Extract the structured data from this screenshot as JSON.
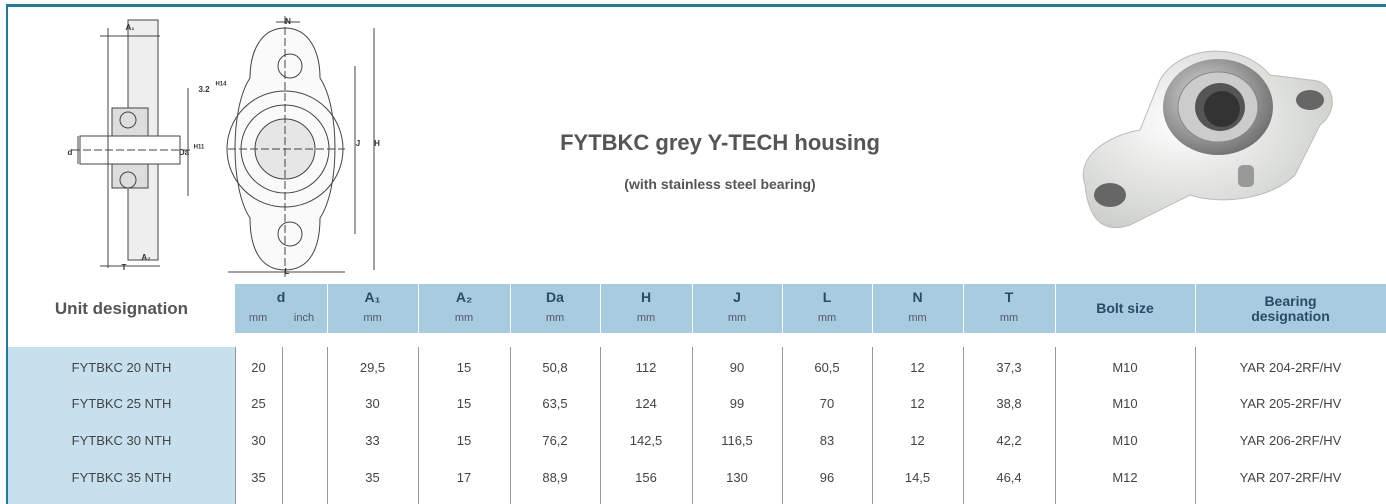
{
  "header": {
    "title": "FYTBKC grey Y-TECH housing",
    "subtitle": "(with stainless steel bearing)"
  },
  "drawing_labels": {
    "a1": "A₁",
    "n": "N",
    "tol": "3.2",
    "tol_grade": "H14",
    "da": "Da",
    "da_grade": "H11",
    "d": "d",
    "j": "J",
    "h": "H",
    "a2": "A₂",
    "t": "T",
    "l": "L"
  },
  "table": {
    "columns": [
      {
        "label": "Unit designation"
      },
      {
        "label": "d",
        "units": [
          "mm",
          "inch"
        ]
      },
      {
        "label": "A₁",
        "units": [
          "mm"
        ]
      },
      {
        "label": "A₂",
        "units": [
          "mm"
        ]
      },
      {
        "label": "Da",
        "units": [
          "mm"
        ]
      },
      {
        "label": "H",
        "units": [
          "mm"
        ]
      },
      {
        "label": "J",
        "units": [
          "mm"
        ]
      },
      {
        "label": "L",
        "units": [
          "mm"
        ]
      },
      {
        "label": "N",
        "units": [
          "mm"
        ]
      },
      {
        "label": "T",
        "units": [
          "mm"
        ]
      },
      {
        "label": "Bolt size"
      },
      {
        "label": "Bearing designation"
      }
    ],
    "rows": [
      [
        "FYTBKC 20 NTH",
        "20",
        "29,5",
        "15",
        "50,8",
        "112",
        "90",
        "60,5",
        "12",
        "37,3",
        "M10",
        "YAR 204-2RF/HV"
      ],
      [
        "FYTBKC 25 NTH",
        "25",
        "30",
        "15",
        "63,5",
        "124",
        "99",
        "70",
        "12",
        "38,8",
        "M10",
        "YAR 205-2RF/HV"
      ],
      [
        "FYTBKC 30 NTH",
        "30",
        "33",
        "15",
        "76,2",
        "142,5",
        "116,5",
        "83",
        "12",
        "42,2",
        "M10",
        "YAR 206-2RF/HV"
      ],
      [
        "FYTBKC 35 NTH",
        "35",
        "35",
        "17",
        "88,9",
        "156",
        "130",
        "96",
        "14,5",
        "46,4",
        "M12",
        "YAR 207-2RF/HV"
      ]
    ]
  }
}
